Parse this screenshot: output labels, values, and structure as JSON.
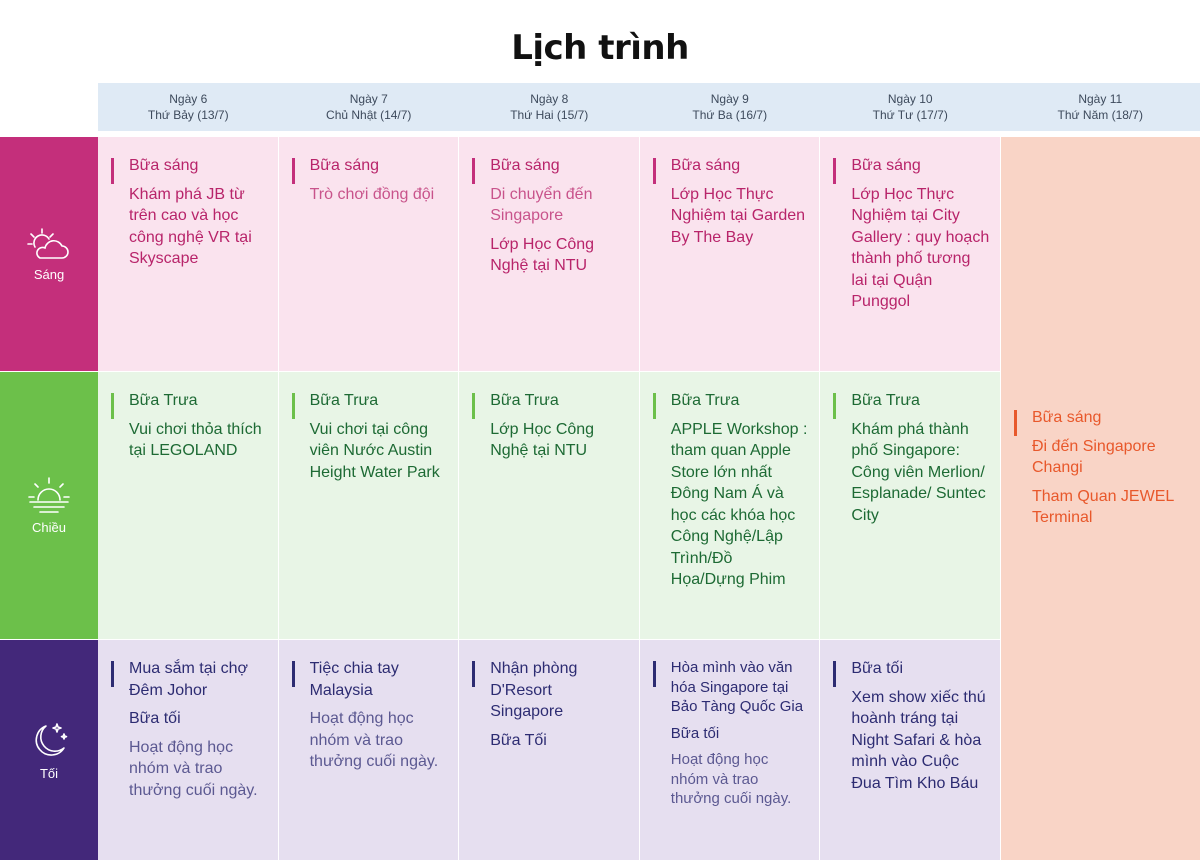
{
  "title": "Lịch trình",
  "days": [
    {
      "day": "Ngày 6",
      "date": "Thứ Bảy (13/7)"
    },
    {
      "day": "Ngày 7",
      "date": "Chủ Nhật (14/7)"
    },
    {
      "day": "Ngày 8",
      "date": "Thứ Hai (15/7)"
    },
    {
      "day": "Ngày 9",
      "date": "Thứ Ba (16/7)"
    },
    {
      "day": "Ngày 10",
      "date": "Thứ Tư  (17/7)"
    },
    {
      "day": "Ngày 11",
      "date": "Thứ Năm (18/7)"
    }
  ],
  "periods": {
    "morning": {
      "label": "Sáng",
      "icon": "cloud-sun-icon",
      "color": "#c42f7b"
    },
    "afternoon": {
      "label": "Chiều",
      "icon": "sunset-icon",
      "color": "#6cc04a"
    },
    "evening": {
      "label": "Tối",
      "icon": "moon-stars-icon",
      "color": "#43287a"
    }
  },
  "morning": [
    [
      "Bữa sáng",
      "Khám phá JB từ trên cao và học công nghệ VR tại Skyscape"
    ],
    [
      "Bữa sáng",
      "Trò chơi đồng đội"
    ],
    [
      "Bữa sáng",
      "Di chuyển đến Singapore",
      "Lớp Học Công Nghệ tại   NTU"
    ],
    [
      "Bữa sáng",
      "Lớp Học Thực Nghiệm tại Garden By The Bay"
    ],
    [
      "Bữa sáng",
      "Lớp Học Thực Nghiệm tại   City Gallery  : quy hoạch thành phố tương lai tại Quận Punggol"
    ]
  ],
  "afternoon": [
    [
      "Bữa Trưa",
      "Vui chơi thỏa thích tại LEGOLAND"
    ],
    [
      "Bữa Trưa",
      "Vui chơi tại công viên Nước Austin Height Water Park"
    ],
    [
      "Bữa Trưa",
      "Lớp Học Công Nghệ tại   NTU"
    ],
    [
      "Bữa Trưa",
      "APPLE Workshop  : tham quan Apple Store lớn nhất Đông Nam Á và học các khóa học Công Nghệ/Lập Trình/Đồ Họa/Dựng Phim"
    ],
    [
      "Bữa Trưa",
      "Khám phá thành phố Singapore: Công viên Merlion/ Esplanade/ Suntec City"
    ]
  ],
  "evening": [
    [
      "Mua sắm tại chợ Đêm Johor",
      "Bữa tối",
      "Hoạt động học nhóm và trao thưởng cuối ngày."
    ],
    [
      "Tiệc chia tay Malaysia",
      "Hoạt động học nhóm và trao thưởng cuối ngày."
    ],
    [
      "Nhận phòng D'Resort Singapore",
      "Bữa Tối"
    ],
    [
      "Hòa mình vào văn hóa Singapore tại Bảo Tàng Quốc Gia",
      "Bữa tối",
      "Hoạt động học nhóm và trao thưởng cuối ngày."
    ],
    [
      "Bữa tối",
      "Xem show xiếc thú hoành tráng tại  Night Safari & hòa mình vào Cuộc Đua Tìm Kho Báu"
    ]
  ],
  "day11": [
    "Bữa sáng",
    "Đi đến Singapore Changi",
    "Tham Quan JEWEL Terminal"
  ]
}
